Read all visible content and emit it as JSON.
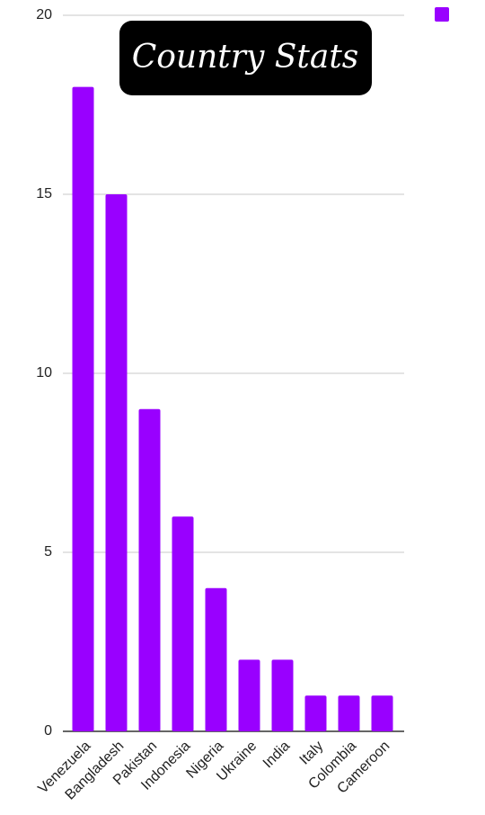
{
  "chart_data": {
    "type": "bar",
    "title": "Country Stats",
    "categories": [
      "Venezuela",
      "Bangladesh",
      "Pakistan",
      "Indonesia",
      "Nigeria",
      "Ukraine",
      "India",
      "Italy",
      "Colombia",
      "Cameroon"
    ],
    "values": [
      18,
      15,
      9,
      6,
      4,
      2,
      2,
      1,
      1,
      1
    ],
    "color": "#9900ff",
    "ylim": [
      0,
      20
    ],
    "yticks": [
      0,
      5,
      10,
      15,
      20
    ],
    "grid": true
  }
}
